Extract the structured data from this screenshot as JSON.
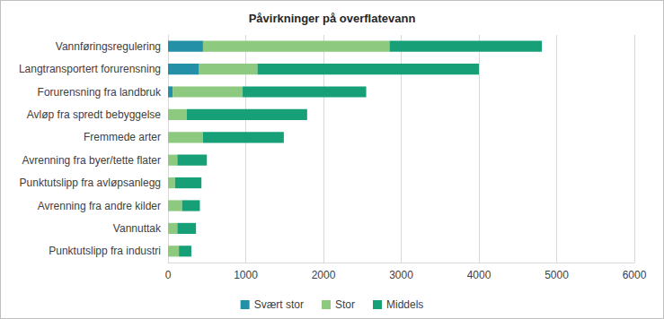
{
  "chart_data": {
    "type": "bar",
    "title": "Påvirkninger på overflatevann",
    "orientation": "horizontal",
    "stacked": true,
    "grid": true,
    "legend": "bottom",
    "categories": [
      "Vannføringsregulering",
      "Langtransportert forurensning",
      "Forurensning fra landbruk",
      "Avløp fra spredt bebyggelse",
      "Fremmede arter",
      "Avrenning fra byer/tette flater",
      "Punktutslipp fra avløpsanlegg",
      "Avrenning fra andre kilder",
      "Vannuttak",
      "Punktutslipp fra industri"
    ],
    "series": [
      {
        "name": "Svært stor",
        "color": "#2490a8",
        "values": [
          450,
          400,
          60,
          0,
          0,
          0,
          0,
          0,
          0,
          0
        ]
      },
      {
        "name": "Stor",
        "color": "#8dc97e",
        "values": [
          2400,
          750,
          900,
          240,
          450,
          120,
          90,
          180,
          120,
          140
        ]
      },
      {
        "name": "Middels",
        "color": "#17a077",
        "values": [
          1960,
          2850,
          1590,
          1550,
          1040,
          380,
          340,
          230,
          240,
          160
        ]
      }
    ],
    "xlim": [
      0,
      6000
    ],
    "xticks": [
      0,
      1000,
      2000,
      3000,
      4000,
      5000,
      6000
    ]
  }
}
